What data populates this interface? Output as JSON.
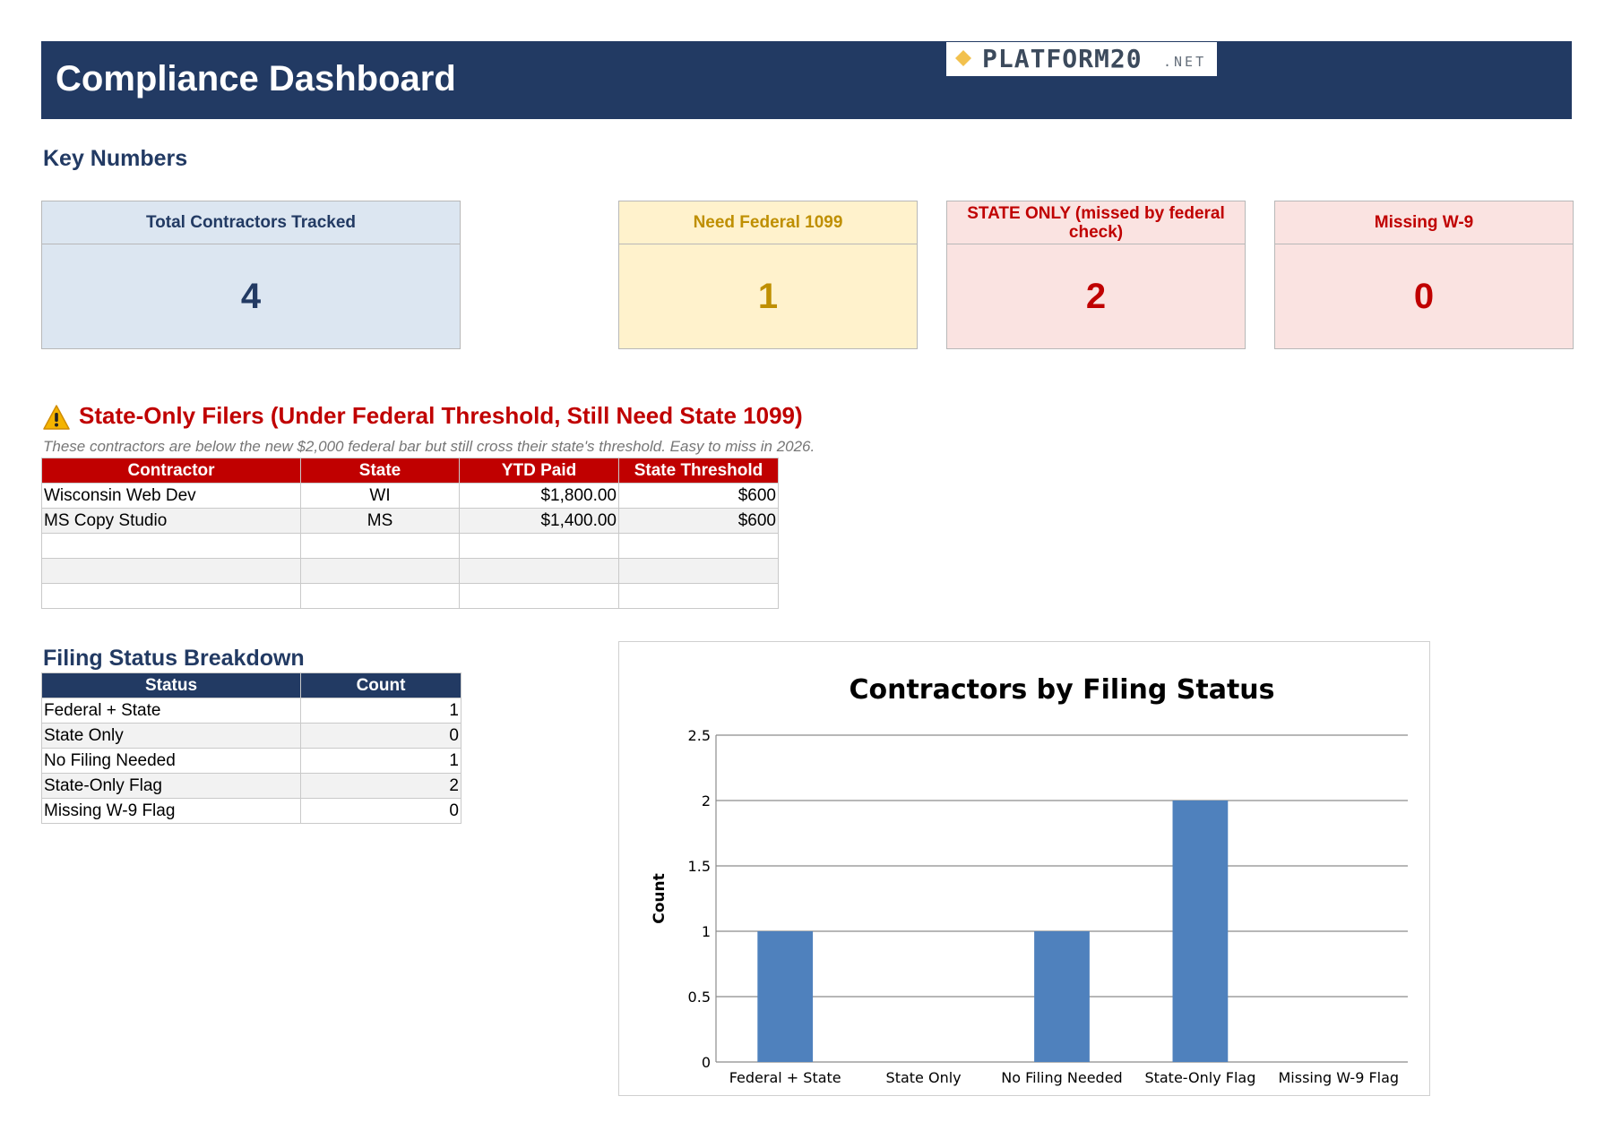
{
  "header": {
    "title": "Compliance Dashboard",
    "logo_text": "PLATFORM20",
    "logo_suffix": ".NET"
  },
  "key_numbers": {
    "title": "Key Numbers",
    "cards": [
      {
        "label": "Total Contractors Tracked",
        "value": "4",
        "color": "#223a63"
      },
      {
        "label": "Need Federal 1099",
        "value": "1",
        "color": "#bf8f00"
      },
      {
        "label": "STATE ONLY (missed by federal check)",
        "value": "2",
        "color": "#c00000"
      },
      {
        "label": "Missing W-9",
        "value": "0",
        "color": "#c00000"
      }
    ]
  },
  "state_only": {
    "title": "State-Only Filers (Under Federal Threshold, Still Need State 1099)",
    "note": "These contractors are below the new $2,000 federal bar but still cross their state's threshold. Easy to miss in 2026.",
    "columns": [
      "Contractor",
      "State",
      "YTD Paid",
      "State Threshold"
    ],
    "rows": [
      [
        "Wisconsin Web Dev",
        "WI",
        "$1,800.00",
        "$600"
      ],
      [
        "MS Copy Studio",
        "MS",
        "$1,400.00",
        "$600"
      ],
      [
        "",
        "",
        "",
        ""
      ],
      [
        "",
        "",
        "",
        ""
      ],
      [
        "",
        "",
        "",
        ""
      ]
    ],
    "header_color": "#c00000"
  },
  "filing_status": {
    "title": "Filing Status Breakdown",
    "columns": [
      "Status",
      "Count"
    ],
    "rows": [
      [
        "Federal + State",
        "1"
      ],
      [
        "State Only",
        "0"
      ],
      [
        "No Filing Needed",
        "1"
      ],
      [
        "State-Only Flag",
        "2"
      ],
      [
        "Missing W-9 Flag",
        "0"
      ]
    ],
    "header_color": "#223a63"
  },
  "chart_data": {
    "type": "bar",
    "title": "Contractors by Filing Status",
    "xlabel": "",
    "ylabel": "Count",
    "categories": [
      "Federal + State",
      "State Only",
      "No Filing Needed",
      "State-Only Flag",
      "Missing W-9 Flag"
    ],
    "values": [
      1,
      0,
      1,
      2,
      0
    ],
    "ylim": [
      0,
      2.5
    ],
    "yticks": [
      "0",
      "0.5",
      "1",
      "1.5",
      "2",
      "2.5"
    ],
    "grid": true,
    "legend": "none",
    "bar_color": "#4f81bd"
  }
}
